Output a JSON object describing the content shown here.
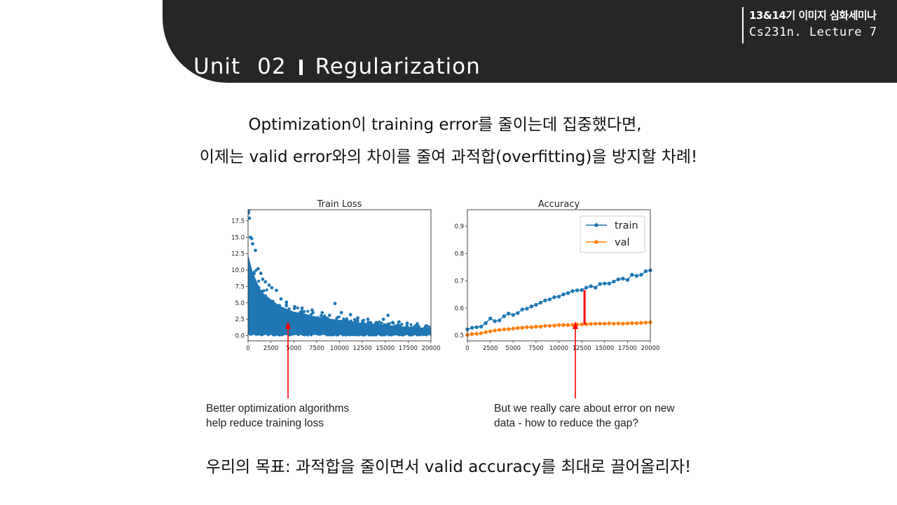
{
  "header": {
    "unit_label": "Unit",
    "unit_number": "02",
    "unit_topic": "Regularization",
    "seminar": "13&14기 이미지 심화세미나",
    "lecture": "Cs231n. Lecture 7"
  },
  "intro": {
    "line1": "Optimization이 training error를 줄이는데 집중했다면,",
    "line2": "이제는 valid error와의 차이를 줄여 과적합(overfitting)을 방지할 차례!"
  },
  "goal": "우리의 목표: 과적합을 줄이면서 valid accuracy를 최대로 끌어올리자!",
  "captions": {
    "left": [
      "Better optimization algorithms",
      "help reduce training loss"
    ],
    "right": [
      "But we really care about error on new",
      "data - how to reduce the gap?"
    ]
  },
  "colors": {
    "header_bg": "#262626",
    "train": "#1f77b4",
    "val": "#ff7f0e",
    "arrow": "#ff0000"
  },
  "chart_data": [
    {
      "type": "scatter",
      "title": "Train Loss",
      "xlim": [
        0,
        20000
      ],
      "ylim": [
        -0.8,
        19.2
      ],
      "xticks": [
        0,
        2500,
        5000,
        7500,
        10000,
        12500,
        15000,
        17500,
        20000
      ],
      "xtick_labels": [
        "0",
        "2500",
        "5000",
        "7500",
        "10000",
        "12500",
        "15000",
        "17500",
        "20000"
      ],
      "yticks": [
        0.0,
        2.5,
        5.0,
        7.5,
        10.0,
        12.5,
        15.0,
        17.5
      ],
      "ytick_labels": [
        "0.0",
        "2.5",
        "5.0",
        "7.5",
        "10.0",
        "12.5",
        "15.0",
        "17.5"
      ],
      "outliers": [
        [
          50,
          18.7
        ],
        [
          60,
          19.1
        ],
        [
          150,
          17.9
        ],
        [
          250,
          15.0
        ],
        [
          400,
          14.8
        ],
        [
          500,
          14.0
        ],
        [
          800,
          13.0
        ],
        [
          1100,
          10.2
        ],
        [
          1400,
          9.5
        ],
        [
          1600,
          8.6
        ],
        [
          1900,
          8.2
        ],
        [
          2300,
          7.7
        ],
        [
          2600,
          7.3
        ],
        [
          3100,
          6.9
        ],
        [
          3600,
          5.6
        ],
        [
          4200,
          5.1
        ],
        [
          5100,
          4.4
        ],
        [
          5900,
          4.2
        ],
        [
          7000,
          3.9
        ],
        [
          8100,
          3.5
        ],
        [
          8900,
          3.1
        ],
        [
          9500,
          4.9
        ],
        [
          10200,
          3.5
        ],
        [
          11200,
          3.2
        ],
        [
          12000,
          2.7
        ],
        [
          13100,
          2.5
        ],
        [
          14800,
          2.5
        ],
        [
          15300,
          3.1
        ],
        [
          15800,
          2.0
        ],
        [
          16500,
          2.1
        ],
        [
          17400,
          1.9
        ],
        [
          18500,
          1.8
        ],
        [
          19500,
          1.5
        ]
      ],
      "envelope": [
        [
          0,
          14.5
        ],
        [
          500,
          11.5
        ],
        [
          1000,
          9.5
        ],
        [
          1500,
          7.8
        ],
        [
          2500,
          6.5
        ],
        [
          3500,
          5.3
        ],
        [
          5000,
          4.3
        ],
        [
          7500,
          3.4
        ],
        [
          10000,
          2.8
        ],
        [
          12500,
          2.3
        ],
        [
          15000,
          1.9
        ],
        [
          17500,
          1.6
        ],
        [
          20000,
          1.3
        ]
      ]
    },
    {
      "type": "line",
      "title": "Accuracy",
      "xlim": [
        0,
        20000
      ],
      "ylim": [
        0.48,
        0.96
      ],
      "xticks": [
        0,
        2500,
        5000,
        7500,
        10000,
        12500,
        15000,
        17500,
        20000
      ],
      "xtick_labels": [
        "0",
        "2500",
        "5000",
        "7500",
        "10000",
        "12500",
        "15000",
        "17500",
        "20000"
      ],
      "yticks": [
        0.5,
        0.6,
        0.7,
        0.8,
        0.9
      ],
      "ytick_labels": [
        "0.5",
        "0.6",
        "0.7",
        "0.8",
        "0.9"
      ],
      "legend": "top-right",
      "gap_x": 12500,
      "series": [
        {
          "name": "train",
          "x": [
            0,
            500,
            1000,
            1500,
            2000,
            2500,
            3000,
            3500,
            4000,
            4500,
            5000,
            5500,
            6000,
            6500,
            7000,
            7500,
            8000,
            8500,
            9000,
            9500,
            10000,
            10500,
            11000,
            11500,
            12000,
            12500,
            13000,
            13500,
            14000,
            14500,
            15000,
            15500,
            16000,
            16500,
            17000,
            17500,
            18000,
            18500,
            19000,
            19500,
            20000
          ],
          "values": [
            0.522,
            0.528,
            0.53,
            0.532,
            0.545,
            0.562,
            0.552,
            0.555,
            0.57,
            0.58,
            0.575,
            0.582,
            0.595,
            0.598,
            0.606,
            0.612,
            0.62,
            0.628,
            0.632,
            0.64,
            0.642,
            0.65,
            0.655,
            0.662,
            0.665,
            0.666,
            0.675,
            0.68,
            0.675,
            0.688,
            0.69,
            0.69,
            0.697,
            0.705,
            0.708,
            0.703,
            0.722,
            0.718,
            0.722,
            0.735,
            0.738
          ]
        },
        {
          "name": "val",
          "x": [
            0,
            500,
            1000,
            1500,
            2000,
            2500,
            3000,
            3500,
            4000,
            4500,
            5000,
            5500,
            6000,
            6500,
            7000,
            7500,
            8000,
            8500,
            9000,
            9500,
            10000,
            10500,
            11000,
            11500,
            12000,
            12500,
            13000,
            13500,
            14000,
            14500,
            15000,
            15500,
            16000,
            16500,
            17000,
            17500,
            18000,
            18500,
            19000,
            19500,
            20000
          ],
          "values": [
            0.502,
            0.505,
            0.506,
            0.508,
            0.512,
            0.515,
            0.518,
            0.52,
            0.522,
            0.523,
            0.525,
            0.527,
            0.528,
            0.53,
            0.53,
            0.532,
            0.532,
            0.535,
            0.535,
            0.536,
            0.538,
            0.538,
            0.538,
            0.539,
            0.54,
            0.54,
            0.541,
            0.542,
            0.543,
            0.543,
            0.543,
            0.544,
            0.543,
            0.544,
            0.543,
            0.544,
            0.545,
            0.545,
            0.546,
            0.547,
            0.548
          ]
        }
      ]
    }
  ]
}
